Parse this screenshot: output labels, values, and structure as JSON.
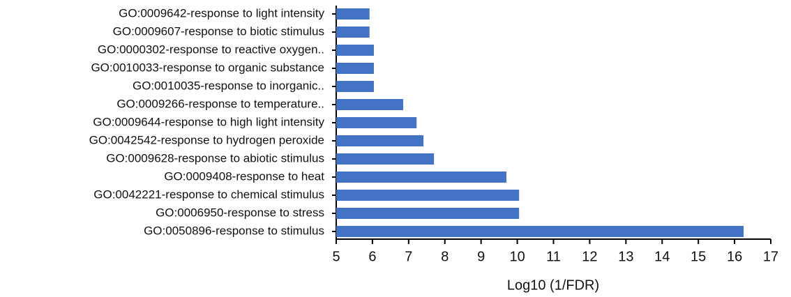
{
  "chart_data": {
    "type": "barh",
    "xlabel": "Log10 (1/FDR)",
    "categories": [
      "GO:0009642-response to light intensity",
      "GO:0009607-response to biotic stimulus",
      "GO:0000302-response to reactive oxygen..",
      "GO:0010033-response to organic substance",
      "GO:0010035-response to inorganic..",
      "GO:0009266-response to temperature..",
      "GO:0009644-response to high light intensity",
      "GO:0042542-response to hydrogen peroxide",
      "GO:0009628-response to abiotic stimulus",
      "GO:0009408-response to heat",
      "GO:0042221-response to chemical stimulus",
      "GO:0006950-response to stress",
      "GO:0050896-response to stimulus"
    ],
    "values": [
      5.92,
      5.92,
      6.04,
      6.04,
      6.04,
      6.85,
      7.22,
      7.41,
      7.7,
      9.7,
      10.05,
      10.05,
      16.25
    ],
    "color": "#4472c4",
    "xlim": [
      5,
      17
    ],
    "xticks": [
      5,
      6,
      7,
      8,
      9,
      10,
      11,
      12,
      13,
      14,
      15,
      16,
      17
    ],
    "grid": false
  }
}
